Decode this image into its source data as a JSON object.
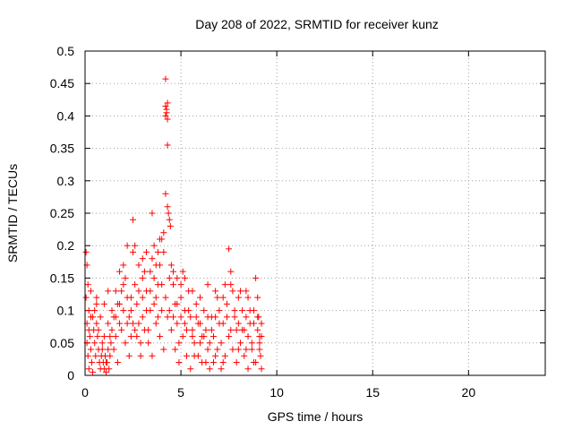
{
  "chart_data": {
    "type": "scatter",
    "title": "Day 208 of 2022, SRMTID for receiver kunz",
    "xlabel": "GPS time / hours",
    "ylabel": "SRMTID / TECUs",
    "xlim": [
      0,
      24
    ],
    "ylim": [
      0,
      0.5
    ],
    "x_ticks": [
      0,
      5,
      10,
      15,
      20
    ],
    "x_tick_labels": [
      "0",
      "5",
      "10",
      "15",
      "20"
    ],
    "y_ticks": [
      0,
      0.05,
      0.1,
      0.15,
      0.2,
      0.25,
      0.3,
      0.35,
      0.4,
      0.45,
      0.5
    ],
    "y_tick_labels": [
      "0",
      "0.05",
      "0.1",
      "0.15",
      "0.2",
      "0.25",
      "0.3",
      "0.35",
      "0.4",
      "0.45",
      "0.5"
    ],
    "grid": true,
    "legend": "none",
    "marker": "plus",
    "marker_color": "#ff0000",
    "series": [
      {
        "points": [
          [
            0.05,
            0.19
          ],
          [
            0.1,
            0.17
          ],
          [
            0.15,
            0.14
          ],
          [
            0.05,
            0.12
          ],
          [
            0.2,
            0.1
          ],
          [
            0.1,
            0.08
          ],
          [
            0.25,
            0.06
          ],
          [
            0.3,
            0.04
          ],
          [
            0.15,
            0.03
          ],
          [
            0.35,
            0.02
          ],
          [
            0.2,
            0.01
          ],
          [
            0.4,
            0.005
          ],
          [
            0.1,
            0.05
          ],
          [
            0.3,
            0.09
          ],
          [
            0.45,
            0.07
          ],
          [
            0.5,
            0.05
          ],
          [
            0.55,
            0.03
          ],
          [
            0.6,
            0.08
          ],
          [
            0.65,
            0.06
          ],
          [
            0.7,
            0.04
          ],
          [
            0.75,
            0.02
          ],
          [
            0.8,
            0.01
          ],
          [
            0.85,
            0.03
          ],
          [
            0.9,
            0.05
          ],
          [
            0.95,
            0.02
          ],
          [
            1.0,
            0.01
          ],
          [
            1.05,
            0.03
          ],
          [
            1.1,
            0.005
          ],
          [
            1.15,
            0.02
          ],
          [
            1.2,
            0.04
          ],
          [
            1.25,
            0.01
          ],
          [
            1.3,
            0.03
          ],
          [
            1.35,
            0.05
          ],
          [
            1.4,
            0.07
          ],
          [
            1.5,
            0.09
          ],
          [
            1.6,
            0.06
          ],
          [
            1.7,
            0.11
          ],
          [
            1.8,
            0.08
          ],
          [
            1.9,
            0.13
          ],
          [
            2.0,
            0.1
          ],
          [
            2.1,
            0.15
          ],
          [
            2.2,
            0.12
          ],
          [
            2.3,
            0.09
          ],
          [
            2.4,
            0.06
          ],
          [
            2.5,
            0.19
          ],
          [
            2.6,
            0.14
          ],
          [
            2.7,
            0.11
          ],
          [
            2.8,
            0.08
          ],
          [
            2.9,
            0.05
          ],
          [
            3.0,
            0.12
          ],
          [
            3.1,
            0.16
          ],
          [
            3.2,
            0.1
          ],
          [
            3.3,
            0.07
          ],
          [
            3.4,
            0.13
          ],
          [
            3.5,
            0.18
          ],
          [
            3.6,
            0.15
          ],
          [
            3.7,
            0.12
          ],
          [
            3.8,
            0.09
          ],
          [
            3.9,
            0.17
          ],
          [
            4.0,
            0.14
          ],
          [
            2.0,
            0.17
          ],
          [
            2.2,
            0.2
          ],
          [
            2.5,
            0.24
          ],
          [
            3.5,
            0.25
          ],
          [
            3.8,
            0.19
          ],
          [
            4.0,
            0.21
          ],
          [
            4.1,
            0.22
          ],
          [
            4.2,
            0.28
          ],
          [
            4.3,
            0.26
          ],
          [
            4.35,
            0.25
          ],
          [
            4.4,
            0.24
          ],
          [
            4.45,
            0.23
          ],
          [
            4.3,
            0.355
          ],
          [
            4.2,
            0.4
          ],
          [
            4.25,
            0.41
          ],
          [
            4.2,
            0.415
          ],
          [
            4.3,
            0.42
          ],
          [
            4.25,
            0.405
          ],
          [
            4.3,
            0.395
          ],
          [
            4.2,
            0.457
          ],
          [
            4.5,
            0.17
          ],
          [
            4.6,
            0.14
          ],
          [
            4.7,
            0.11
          ],
          [
            4.8,
            0.08
          ],
          [
            4.9,
            0.05
          ],
          [
            5.0,
            0.12
          ],
          [
            5.1,
            0.16
          ],
          [
            5.2,
            0.1
          ],
          [
            5.3,
            0.07
          ],
          [
            5.4,
            0.13
          ],
          [
            5.5,
            0.09
          ],
          [
            5.6,
            0.06
          ],
          [
            5.7,
            0.03
          ],
          [
            5.8,
            0.11
          ],
          [
            5.9,
            0.08
          ],
          [
            6.0,
            0.05
          ],
          [
            6.1,
            0.02
          ],
          [
            6.2,
            0.1
          ],
          [
            6.3,
            0.07
          ],
          [
            6.4,
            0.04
          ],
          [
            6.5,
            0.01
          ],
          [
            6.6,
            0.09
          ],
          [
            6.7,
            0.06
          ],
          [
            6.8,
            0.03
          ],
          [
            6.9,
            0.12
          ],
          [
            7.0,
            0.08
          ],
          [
            7.1,
            0.05
          ],
          [
            7.2,
            0.02
          ],
          [
            7.3,
            0.14
          ],
          [
            7.4,
            0.11
          ],
          [
            7.5,
            0.195
          ],
          [
            7.6,
            0.16
          ],
          [
            7.7,
            0.13
          ],
          [
            7.8,
            0.1
          ],
          [
            7.9,
            0.07
          ],
          [
            8.0,
            0.04
          ],
          [
            8.1,
            0.13
          ],
          [
            8.2,
            0.1
          ],
          [
            8.3,
            0.07
          ],
          [
            8.4,
            0.04
          ],
          [
            8.5,
            0.01
          ],
          [
            8.6,
            0.08
          ],
          [
            8.7,
            0.05
          ],
          [
            8.8,
            0.02
          ],
          [
            8.9,
            0.15
          ],
          [
            9.0,
            0.12
          ],
          [
            9.05,
            0.09
          ],
          [
            9.1,
            0.06
          ],
          [
            9.15,
            0.03
          ],
          [
            9.2,
            0.01
          ],
          [
            8.5,
            0.12
          ],
          [
            8.8,
            0.1
          ],
          [
            9.0,
            0.07
          ],
          [
            9.1,
            0.05
          ],
          [
            9.2,
            0.08
          ],
          [
            0.6,
            0.12
          ],
          [
            0.8,
            0.09
          ],
          [
            1.0,
            0.06
          ],
          [
            1.2,
            0.08
          ],
          [
            1.4,
            0.1
          ],
          [
            1.6,
            0.13
          ],
          [
            1.8,
            0.16
          ],
          [
            2.0,
            0.14
          ],
          [
            2.4,
            0.12
          ],
          [
            2.6,
            0.2
          ],
          [
            2.8,
            0.17
          ],
          [
            3.0,
            0.15
          ],
          [
            3.2,
            0.19
          ],
          [
            3.4,
            0.16
          ],
          [
            3.6,
            0.2
          ],
          [
            3.7,
            0.17
          ],
          [
            3.9,
            0.21
          ],
          [
            4.1,
            0.19
          ],
          [
            4.6,
            0.16
          ],
          [
            4.8,
            0.15
          ],
          [
            5.0,
            0.14
          ],
          [
            5.2,
            0.15
          ],
          [
            5.6,
            0.13
          ],
          [
            6.0,
            0.12
          ],
          [
            6.4,
            0.14
          ],
          [
            6.8,
            0.13
          ],
          [
            7.2,
            0.12
          ],
          [
            7.6,
            0.14
          ],
          [
            8.0,
            0.12
          ],
          [
            8.4,
            0.13
          ],
          [
            0.3,
            0.13
          ],
          [
            0.5,
            0.1
          ],
          [
            0.7,
            0.07
          ],
          [
            0.9,
            0.04
          ],
          [
            1.1,
            0.02
          ],
          [
            1.3,
            0.06
          ],
          [
            1.5,
            0.04
          ],
          [
            1.7,
            0.02
          ],
          [
            1.9,
            0.07
          ],
          [
            2.1,
            0.05
          ],
          [
            2.3,
            0.03
          ],
          [
            2.5,
            0.08
          ],
          [
            2.7,
            0.06
          ],
          [
            2.9,
            0.03
          ],
          [
            3.1,
            0.07
          ],
          [
            3.3,
            0.05
          ],
          [
            3.5,
            0.03
          ],
          [
            3.7,
            0.08
          ],
          [
            3.9,
            0.06
          ],
          [
            4.1,
            0.04
          ],
          [
            4.3,
            0.09
          ],
          [
            4.5,
            0.07
          ],
          [
            4.7,
            0.04
          ],
          [
            4.9,
            0.02
          ],
          [
            5.1,
            0.06
          ],
          [
            5.3,
            0.03
          ],
          [
            5.5,
            0.01
          ],
          [
            5.7,
            0.05
          ],
          [
            5.9,
            0.03
          ],
          [
            6.1,
            0.06
          ],
          [
            6.3,
            0.02
          ],
          [
            6.5,
            0.05
          ],
          [
            6.7,
            0.02
          ],
          [
            6.9,
            0.04
          ],
          [
            7.1,
            0.01
          ],
          [
            7.3,
            0.03
          ],
          [
            7.5,
            0.06
          ],
          [
            7.7,
            0.04
          ],
          [
            7.9,
            0.02
          ],
          [
            8.1,
            0.05
          ],
          [
            8.3,
            0.03
          ],
          [
            8.5,
            0.06
          ],
          [
            8.7,
            0.04
          ],
          [
            8.9,
            0.02
          ],
          [
            9.1,
            0.04
          ],
          [
            0.2,
            0.07
          ],
          [
            0.4,
            0.09
          ],
          [
            0.6,
            0.11
          ],
          [
            1.6,
            0.09
          ],
          [
            1.8,
            0.11
          ],
          [
            2.2,
            0.08
          ],
          [
            2.4,
            0.1
          ],
          [
            2.6,
            0.07
          ],
          [
            3.0,
            0.09
          ],
          [
            3.2,
            0.13
          ],
          [
            3.4,
            0.1
          ],
          [
            3.6,
            0.11
          ],
          [
            3.8,
            0.14
          ],
          [
            4.0,
            0.1
          ],
          [
            4.2,
            0.12
          ],
          [
            4.4,
            0.1
          ],
          [
            4.6,
            0.09
          ],
          [
            4.8,
            0.11
          ],
          [
            5.0,
            0.09
          ],
          [
            5.2,
            0.08
          ],
          [
            5.4,
            0.1
          ],
          [
            5.6,
            0.07
          ],
          [
            5.8,
            0.09
          ],
          [
            6.0,
            0.08
          ],
          [
            6.2,
            0.06
          ],
          [
            6.4,
            0.09
          ],
          [
            6.6,
            0.07
          ],
          [
            6.8,
            0.09
          ],
          [
            7.0,
            0.1
          ],
          [
            7.2,
            0.08
          ],
          [
            7.4,
            0.09
          ],
          [
            7.6,
            0.07
          ],
          [
            7.8,
            0.09
          ],
          [
            8.0,
            0.08
          ],
          [
            8.2,
            0.07
          ],
          [
            8.4,
            0.09
          ],
          [
            8.6,
            0.1
          ],
          [
            8.8,
            0.08
          ],
          [
            9.0,
            0.09
          ],
          [
            9.2,
            0.06
          ],
          [
            1.0,
            0.11
          ],
          [
            1.2,
            0.13
          ],
          [
            2.8,
            0.13
          ],
          [
            3.0,
            0.18
          ],
          [
            4.4,
            0.15
          ]
        ]
      }
    ]
  }
}
